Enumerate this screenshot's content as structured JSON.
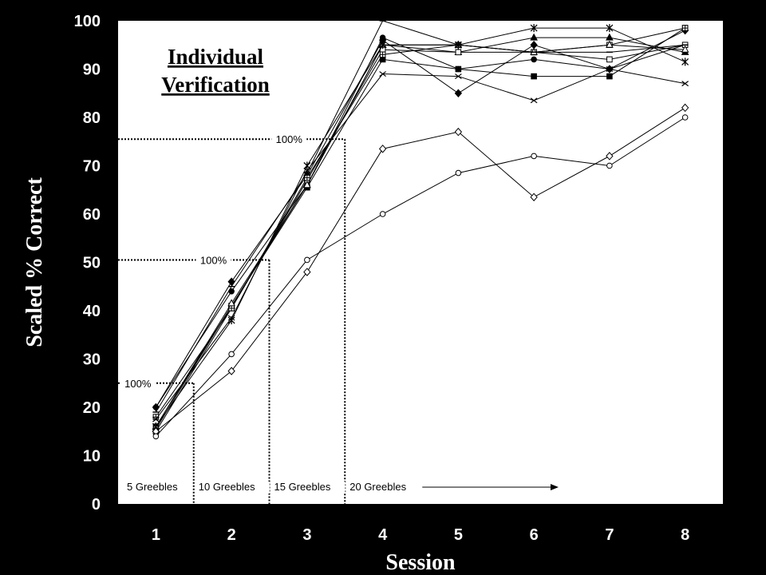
{
  "chart_data": {
    "type": "line",
    "title_lines": [
      "Individual",
      "Verification"
    ],
    "xlabel": "Session",
    "ylabel": "Scaled % Correct",
    "x": [
      1,
      2,
      3,
      4,
      5,
      6,
      7,
      8
    ],
    "xlim": [
      0.5,
      8.5
    ],
    "ylim": [
      0,
      100
    ],
    "yticks": [
      0,
      10,
      20,
      30,
      40,
      50,
      60,
      70,
      80,
      90,
      100
    ],
    "grid": false,
    "plot_background": "#ffffff",
    "page_background": "#000000",
    "series": [
      {
        "marker": "diamond-filled",
        "values": [
          20,
          46,
          68,
          96,
          85,
          95,
          90,
          98
        ]
      },
      {
        "marker": "circle-filled",
        "values": [
          20,
          44,
          66,
          96.5,
          90,
          92,
          90,
          95
        ]
      },
      {
        "marker": "square-filled",
        "values": [
          16,
          41,
          65.5,
          92,
          90,
          88.5,
          88.5,
          98.5
        ]
      },
      {
        "marker": "triangle-filled",
        "values": [
          15.5,
          41,
          66,
          95,
          93.5,
          96.5,
          96.5,
          93.5
        ]
      },
      {
        "marker": "square-open",
        "values": [
          15,
          40.5,
          67,
          94,
          93.5,
          93.5,
          92,
          95
        ]
      },
      {
        "marker": "square-cross",
        "values": [
          18,
          40.5,
          67.5,
          93,
          95,
          93.5,
          95,
          98.5
        ]
      },
      {
        "marker": "triangle-open",
        "values": [
          16,
          41.5,
          66,
          95,
          95,
          93.5,
          95,
          94
        ]
      },
      {
        "marker": "star",
        "values": [
          16,
          38,
          70,
          95,
          95,
          98.5,
          98.5,
          91.5
        ]
      },
      {
        "marker": "x",
        "values": [
          17.5,
          38.5,
          69,
          89,
          88.5,
          83.5,
          90,
          87
        ]
      },
      {
        "marker": "plus-dash",
        "values": [
          19,
          45,
          68.5,
          100,
          95,
          93.5,
          93.5,
          95
        ]
      },
      {
        "marker": "diamond-open",
        "values": [
          15,
          27.5,
          48,
          73.5,
          77,
          63.5,
          72,
          82
        ]
      },
      {
        "marker": "circle-open",
        "values": [
          14,
          31,
          50.5,
          60,
          68.5,
          72,
          70,
          80
        ]
      }
    ],
    "criterion_lines": [
      {
        "label": "100%",
        "y": 25,
        "x_end": 1.5
      },
      {
        "label": "100%",
        "y": 50.5,
        "x_end": 2.5
      },
      {
        "label": "100%",
        "y": 75.5,
        "x_end": 3.5
      }
    ],
    "phase_labels": [
      {
        "label": "5 Greebles"
      },
      {
        "label": "10 Greebles"
      },
      {
        "label": "15 Greebles"
      },
      {
        "label": "20 Greebles"
      }
    ]
  }
}
